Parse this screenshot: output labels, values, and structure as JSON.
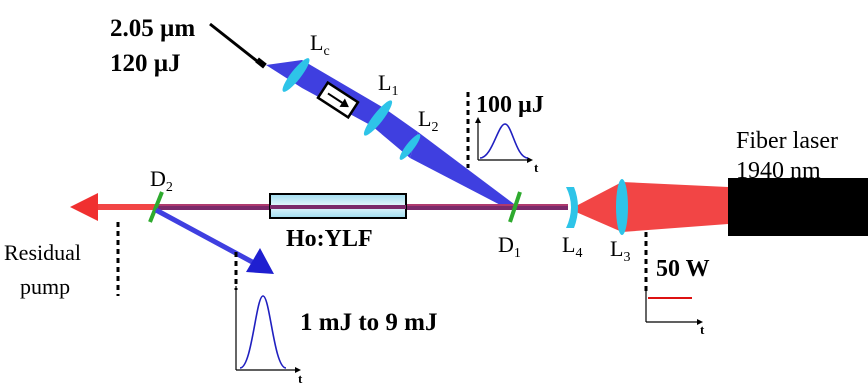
{
  "input_beam": {
    "wavelength": "2.05 µm",
    "energy": "120 µJ"
  },
  "labels": {
    "lc_main": "L",
    "lc_sub": "c",
    "l1_main": "L",
    "l1_sub": "1",
    "l2_main": "L",
    "l2_sub": "2",
    "l3_main": "L",
    "l3_sub": "3",
    "l4_main": "L",
    "l4_sub": "4",
    "d1_main": "D",
    "d1_sub": "1",
    "d2_main": "D",
    "d2_sub": "2",
    "crystal": "Ho:YLF",
    "seed_energy": "100 µJ",
    "pump_power": "50 W",
    "output_energy": "1 mJ to 9 mJ",
    "fiber_laser_line1": "Fiber laser",
    "fiber_laser_line2": "1940 nm",
    "residual_line1": "Residual",
    "residual_line2": "pump",
    "time_axis_seed": "t",
    "time_axis_pump": "t",
    "time_axis_output": "t"
  },
  "colors": {
    "seed_beam": "#3f3fe0",
    "pump_beam": "#f24545",
    "intracavity": "#7a2a6a",
    "lens": "#2ec4e8",
    "dichroic": "#2eaa2e",
    "crystal": "#b8e6f2",
    "pulse": "#2020c0",
    "cw": "#dd1111"
  }
}
